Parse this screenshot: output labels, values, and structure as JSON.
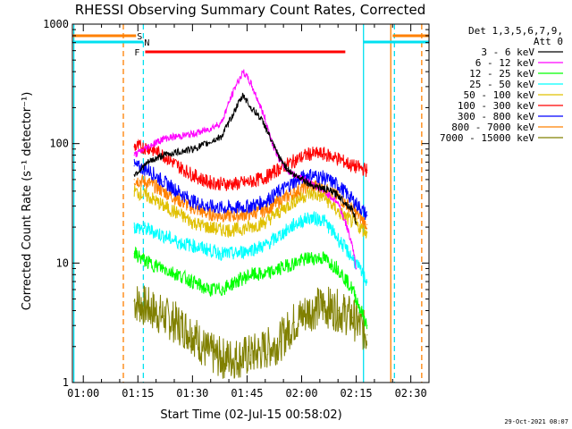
{
  "chart_data": {
    "type": "line",
    "title": "RHESSI Observing Summary Count Rates, Corrected",
    "xlabel": "Start Time (02-Jul-15 00:58:02)",
    "ylabel": "Corrected Count Rate (s⁻¹ detector⁻¹)",
    "yscale": "log",
    "ylim": [
      1,
      1000
    ],
    "xlim_minutes_from_start": [
      -3,
      95
    ],
    "x_ticks": [
      {
        "label": "01:00",
        "minutes": 0
      },
      {
        "label": "01:15",
        "minutes": 15
      },
      {
        "label": "01:30",
        "minutes": 30
      },
      {
        "label": "01:45",
        "minutes": 45
      },
      {
        "label": "02:00",
        "minutes": 60
      },
      {
        "label": "02:15",
        "minutes": 75
      },
      {
        "label": "02:30",
        "minutes": 90
      }
    ],
    "y_ticks": [
      {
        "label": "1",
        "value": 1
      },
      {
        "label": "10",
        "value": 10
      },
      {
        "label": "100",
        "value": 100
      },
      {
        "label": "1000",
        "value": 1000
      }
    ],
    "legend_header": [
      "Det 1,3,5,6,7,9,",
      "Att 0"
    ],
    "flags": [
      {
        "label": "S",
        "color": "#ff8000",
        "start_minutes": -3,
        "end_minutes": 14.5
      },
      {
        "label": "N",
        "color": "#00e0f0",
        "start_minutes": -3,
        "end_minutes": 16.5
      },
      {
        "label": "F",
        "color": "#ff0000",
        "start_minutes": 17,
        "end_minutes": 72
      },
      {
        "label": "",
        "color": "#ff8000",
        "start_minutes": 85,
        "end_minutes": 95
      },
      {
        "label": "",
        "color": "#00e0f0",
        "start_minutes": 77,
        "end_minutes": 95
      }
    ],
    "series": [
      {
        "name": "3 - 6 keV",
        "color": "#000000",
        "x": [
          14,
          18,
          22,
          26,
          30,
          34,
          38,
          40,
          42,
          44,
          46,
          48,
          50,
          52,
          54,
          56,
          58,
          60,
          62,
          64,
          66,
          68,
          70,
          72,
          74,
          75
        ],
        "y": [
          55,
          70,
          80,
          85,
          90,
          100,
          115,
          150,
          200,
          255,
          200,
          175,
          140,
          100,
          75,
          62,
          54,
          52,
          46,
          44,
          42,
          40,
          37,
          32,
          28,
          22
        ]
      },
      {
        "name": "6 - 12 keV",
        "color": "#ff00ff",
        "x": [
          14,
          18,
          22,
          26,
          30,
          34,
          38,
          40,
          42,
          44,
          46,
          48,
          50,
          52,
          54,
          56,
          58,
          60,
          62,
          64,
          66,
          68,
          70,
          72,
          74,
          75
        ],
        "y": [
          80,
          95,
          110,
          115,
          120,
          130,
          150,
          220,
          310,
          400,
          320,
          230,
          160,
          100,
          72,
          60,
          55,
          52,
          48,
          44,
          40,
          36,
          32,
          22,
          14,
          9
        ]
      },
      {
        "name": "12 - 25 keV",
        "color": "#00ff00",
        "x": [
          14,
          18,
          22,
          26,
          30,
          34,
          38,
          42,
          46,
          50,
          54,
          58,
          62,
          66,
          70,
          74,
          78
        ],
        "y": [
          12,
          10,
          9,
          8,
          7,
          6,
          6,
          7,
          8,
          8,
          9,
          10,
          11,
          11,
          9,
          6,
          3
        ]
      },
      {
        "name": "25 - 50 keV",
        "color": "#00ffff",
        "x": [
          14,
          18,
          22,
          26,
          30,
          34,
          38,
          42,
          46,
          50,
          54,
          58,
          62,
          66,
          70,
          74,
          78
        ],
        "y": [
          20,
          19,
          17,
          15,
          14,
          13,
          12,
          12,
          13,
          14,
          17,
          21,
          24,
          23,
          16,
          11,
          7
        ]
      },
      {
        "name": "50 - 100 keV",
        "color": "#e0c000",
        "x": [
          14,
          18,
          22,
          26,
          30,
          34,
          38,
          42,
          46,
          50,
          54,
          58,
          62,
          66,
          70,
          74,
          78
        ],
        "y": [
          40,
          36,
          30,
          26,
          22,
          20,
          19,
          19,
          20,
          22,
          27,
          33,
          38,
          36,
          27,
          22,
          18
        ]
      },
      {
        "name": "100 - 300 keV",
        "color": "#ff0000",
        "x": [
          14,
          18,
          22,
          26,
          30,
          34,
          38,
          42,
          46,
          50,
          54,
          58,
          62,
          66,
          70,
          74,
          78
        ],
        "y": [
          95,
          92,
          80,
          65,
          55,
          48,
          46,
          46,
          48,
          52,
          62,
          72,
          82,
          82,
          75,
          65,
          60
        ]
      },
      {
        "name": "300 - 800 keV",
        "color": "#0000ff",
        "x": [
          14,
          18,
          22,
          26,
          30,
          34,
          38,
          42,
          46,
          50,
          54,
          58,
          62,
          66,
          70,
          74,
          78
        ],
        "y": [
          65,
          60,
          48,
          40,
          33,
          30,
          29,
          29,
          30,
          33,
          40,
          48,
          55,
          52,
          45,
          34,
          25
        ]
      },
      {
        "name": "800 - 7000 keV",
        "color": "#ff8000",
        "x": [
          14,
          18,
          22,
          26,
          30,
          34,
          38,
          42,
          46,
          50,
          54,
          58,
          62,
          66,
          70,
          74,
          78
        ],
        "y": [
          50,
          47,
          40,
          34,
          29,
          26,
          25,
          25,
          26,
          28,
          33,
          39,
          45,
          42,
          36,
          28,
          21
        ]
      },
      {
        "name": "7000 - 15000 keV",
        "color": "#808000",
        "x": [
          14,
          18,
          22,
          26,
          30,
          34,
          38,
          42,
          46,
          50,
          54,
          58,
          62,
          66,
          70,
          74,
          78
        ],
        "y": [
          4.8,
          4.2,
          3.6,
          3.1,
          2.6,
          1.8,
          1.6,
          1.6,
          1.7,
          1.9,
          2.2,
          3.2,
          4.0,
          4.4,
          4.0,
          3.5,
          2.5
        ]
      }
    ],
    "vertical_lines": [
      {
        "color": "#ff8000",
        "minutes": 11,
        "dashed": true
      },
      {
        "color": "#00e0f0",
        "minutes": 16.5,
        "dashed": true
      },
      {
        "color": "#00e0f0",
        "minutes": 77,
        "dashed": false
      },
      {
        "color": "#ff8000",
        "minutes": 84.5,
        "dashed": false
      },
      {
        "color": "#00e0f0",
        "minutes": 85.5,
        "dashed": true
      },
      {
        "color": "#ff8000",
        "minutes": 93,
        "dashed": true
      },
      {
        "color": "#00e0f0",
        "minutes": -2.6,
        "dashed": false
      }
    ],
    "grid": false,
    "legend_position": "right"
  },
  "footer": {
    "timestamp": "29-Oct-2021 08:07"
  }
}
